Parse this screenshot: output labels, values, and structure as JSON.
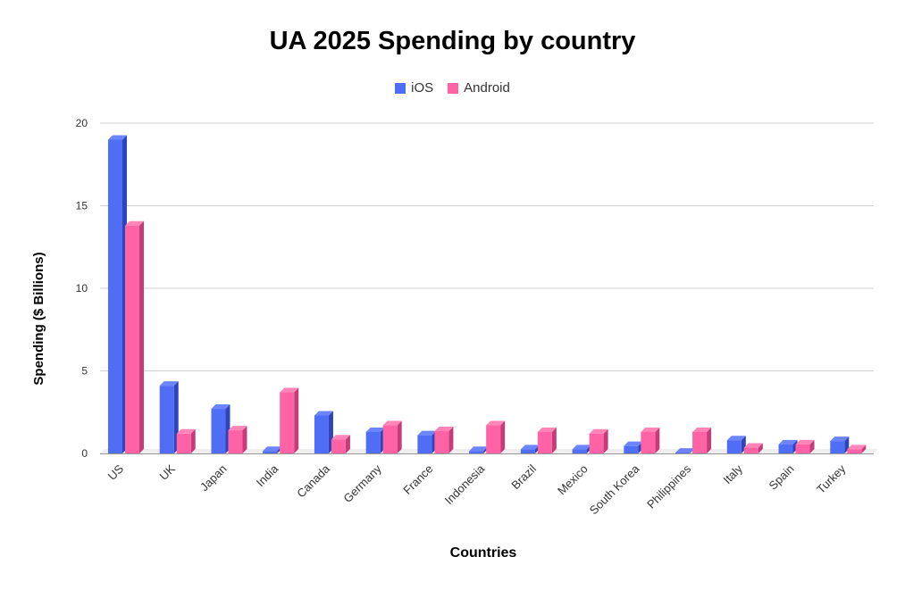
{
  "chart_data": {
    "type": "bar",
    "title": "UA 2025 Spending by country",
    "xlabel": "Countries",
    "ylabel": "Spending ($ Billions)",
    "ylim": [
      0,
      20
    ],
    "yticks": [
      0,
      5,
      10,
      15,
      20
    ],
    "grid": true,
    "legend_position": "top-center",
    "categories": [
      "US",
      "UK",
      "Japan",
      "India",
      "Canada",
      "Germany",
      "France",
      "Indonesia",
      "Brazil",
      "Mexico",
      "South Korea",
      "Philippines",
      "Italy",
      "Spain",
      "Turkey"
    ],
    "series": [
      {
        "name": "iOS",
        "color": "#4f6df5",
        "side_color": "#2e44b8",
        "top_color": "#6b85ff",
        "values": [
          19.0,
          4.1,
          2.7,
          0.15,
          2.3,
          1.3,
          1.1,
          0.15,
          0.25,
          0.25,
          0.45,
          0.05,
          0.8,
          0.55,
          0.75
        ]
      },
      {
        "name": "Android",
        "color": "#ff63a5",
        "side_color": "#c63c78",
        "top_color": "#ff85b8",
        "values": [
          13.8,
          1.2,
          1.4,
          3.7,
          0.85,
          1.7,
          1.35,
          1.7,
          1.3,
          1.2,
          1.3,
          1.3,
          0.35,
          0.55,
          0.25
        ]
      }
    ]
  }
}
